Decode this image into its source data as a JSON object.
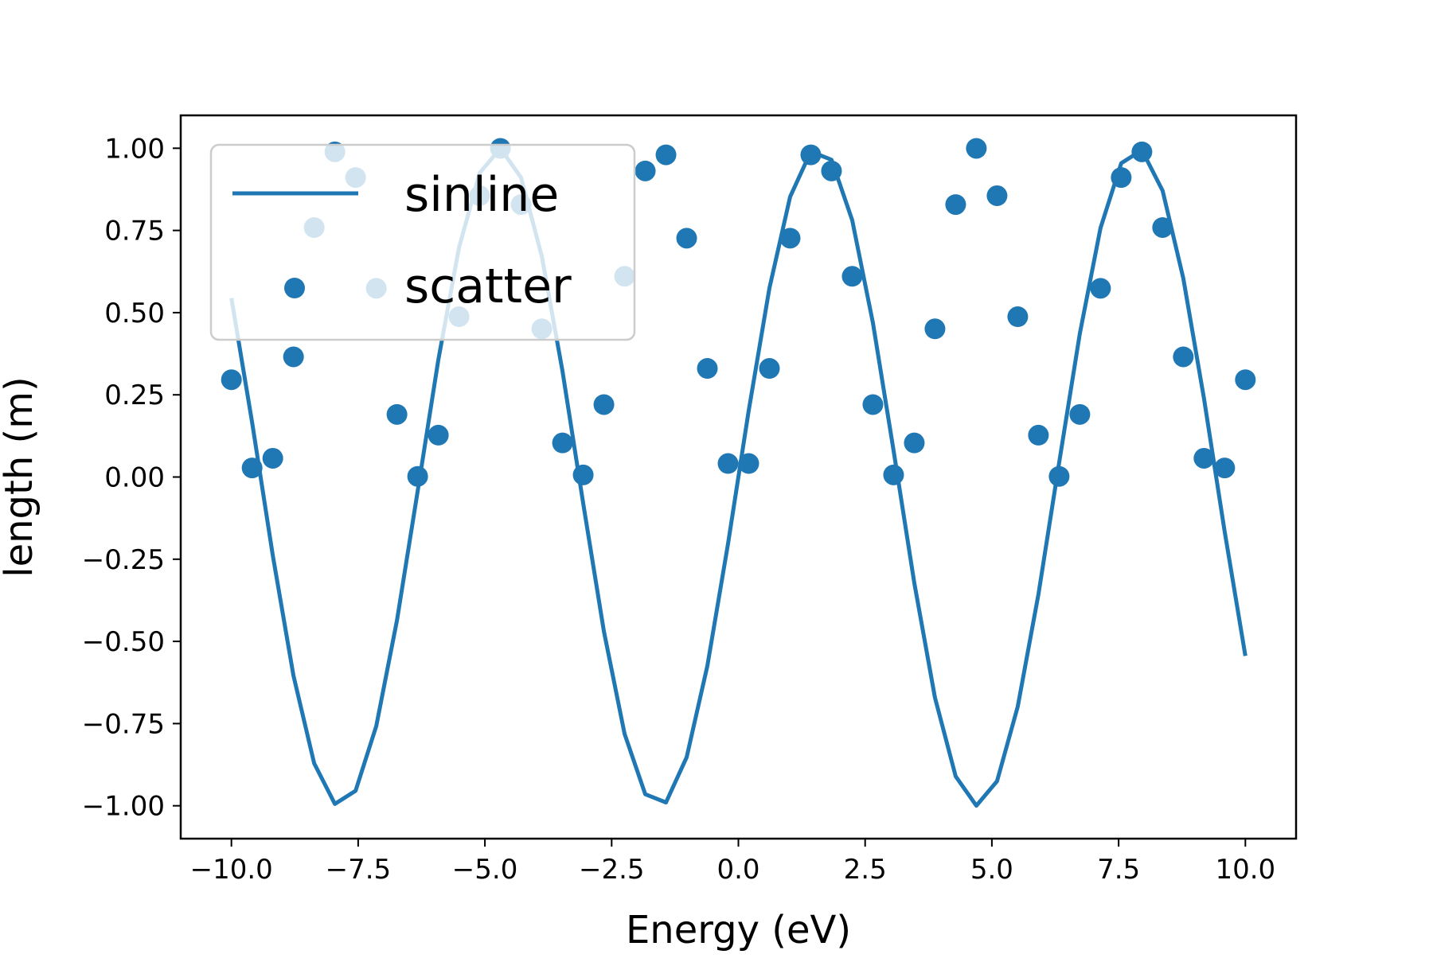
{
  "chart_data": {
    "type": "line",
    "title": "",
    "xlabel": "Energy (eV)",
    "ylabel": "length (m)",
    "xlim": [
      -11,
      11
    ],
    "ylim": [
      -1.1,
      1.1
    ],
    "x_ticks": [
      -10.0,
      -7.5,
      -5.0,
      -2.5,
      0.0,
      2.5,
      5.0,
      7.5,
      10.0
    ],
    "x_tick_labels": [
      "−10.0",
      "−7.5",
      "−5.0",
      "−2.5",
      "0.0",
      "2.5",
      "5.0",
      "7.5",
      "10.0"
    ],
    "y_ticks": [
      -1.0,
      -0.75,
      -0.5,
      -0.25,
      0.0,
      0.25,
      0.5,
      0.75,
      1.0
    ],
    "y_tick_labels": [
      "−1.00",
      "−0.75",
      "−0.50",
      "−0.25",
      "0.00",
      "0.25",
      "0.50",
      "0.75",
      "1.00"
    ],
    "grid": false,
    "legend_position": "upper-left",
    "colors": {
      "series": "#1f77b4",
      "legend_border": "#cccccc"
    },
    "series": [
      {
        "name": "sinline",
        "type": "line",
        "function": "sin(x)",
        "x_range": [
          -10,
          10
        ],
        "num_points": 50
      },
      {
        "name": "scatter",
        "type": "scatter",
        "function": "sin(x)^2",
        "x_range": [
          -10,
          10
        ],
        "num_points": 50
      }
    ]
  }
}
